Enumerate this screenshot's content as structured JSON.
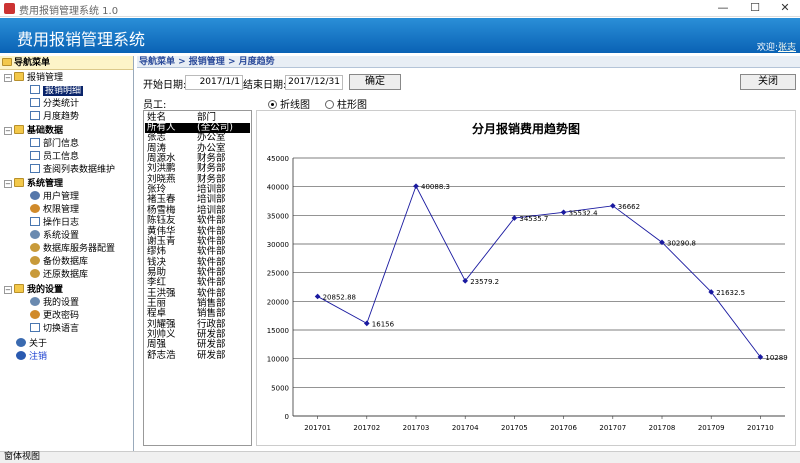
{
  "window": {
    "title": "费用报销管理系统 1.0",
    "min": "—",
    "max": "☐",
    "close": "✕"
  },
  "header": {
    "app_title": "费用报销管理系统",
    "user_prefix": "欢迎",
    "user_name": "张志"
  },
  "sidebar": {
    "nav_header": "导航菜单",
    "groups": [
      {
        "label": "报销管理",
        "items": [
          "报销明细",
          "分类统计",
          "月度趋势"
        ]
      },
      {
        "label": "基础数据",
        "items": [
          "部门信息",
          "员工信息",
          "查阅列表数据维护"
        ]
      },
      {
        "label": "系统管理",
        "items": [
          "用户管理",
          "权限管理",
          "操作日志",
          "系统设置",
          "数据库服务器配置",
          "备份数据库",
          "还原数据库"
        ]
      },
      {
        "label": "我的设置",
        "items": [
          "我的设置",
          "更改密码",
          "切换语言"
        ]
      }
    ],
    "about": "关于",
    "logout": "注销"
  },
  "breadcrumb": "导航菜单 > 报销管理 > 月度趋势",
  "filters": {
    "start_label": "开始日期:",
    "start_value": "2017/1/1",
    "end_label": "结束日期:",
    "end_value": "2017/12/31",
    "confirm": "确定",
    "close": "关闭",
    "employee_label": "员工:",
    "radio_line": "折线图",
    "radio_bar": "柱形图"
  },
  "employees": {
    "headers": [
      "姓名",
      "部门"
    ],
    "rows": [
      [
        "所有人",
        "(全公司)"
      ],
      [
        "张志",
        "办公室"
      ],
      [
        "周涛",
        "办公室"
      ],
      [
        "周源水",
        "财务部"
      ],
      [
        "刘洪鹏",
        "财务部"
      ],
      [
        "刘晓燕",
        "财务部"
      ],
      [
        "张玲",
        "培训部"
      ],
      [
        "褚玉春",
        "培训部"
      ],
      [
        "杨雪梅",
        "培训部"
      ],
      [
        "陈钰友",
        "软件部"
      ],
      [
        "黄伟华",
        "软件部"
      ],
      [
        "谢玉青",
        "软件部"
      ],
      [
        "缪炜",
        "软件部"
      ],
      [
        "钱决",
        "软件部"
      ],
      [
        "易助",
        "软件部"
      ],
      [
        "李红",
        "软件部"
      ],
      [
        "王洪强",
        "软件部"
      ],
      [
        "王丽",
        "销售部"
      ],
      [
        "程卓",
        "销售部"
      ],
      [
        "刘耀强",
        "行政部"
      ],
      [
        "刘帅义",
        "研发部"
      ],
      [
        "周强",
        "研发部"
      ],
      [
        "舒志浩",
        "研发部"
      ]
    ]
  },
  "statusbar": "窗体视图",
  "chart_data": {
    "type": "line",
    "title": "分月报销费用趋势图",
    "categories": [
      "201701",
      "201702",
      "201703",
      "201704",
      "201705",
      "201706",
      "201707",
      "201708",
      "201709",
      "201710"
    ],
    "values": [
      20852.88,
      16156,
      40088.3,
      23579.2,
      34535.7,
      35532.4,
      36662,
      30290.8,
      21632.5,
      10289
    ],
    "labels": [
      "20852.88",
      "16156",
      "40088.3",
      "23579.2",
      "34535.7",
      "35532.4",
      "36662",
      "30290.8",
      "21632.5",
      "10289"
    ],
    "ylim": [
      0,
      45000
    ],
    "yticks": [
      "0",
      "5000",
      "10000",
      "15000",
      "20000",
      "25000",
      "30000",
      "35000",
      "40000",
      "45000"
    ],
    "grid": true,
    "line_color": "#1a1aa0"
  }
}
